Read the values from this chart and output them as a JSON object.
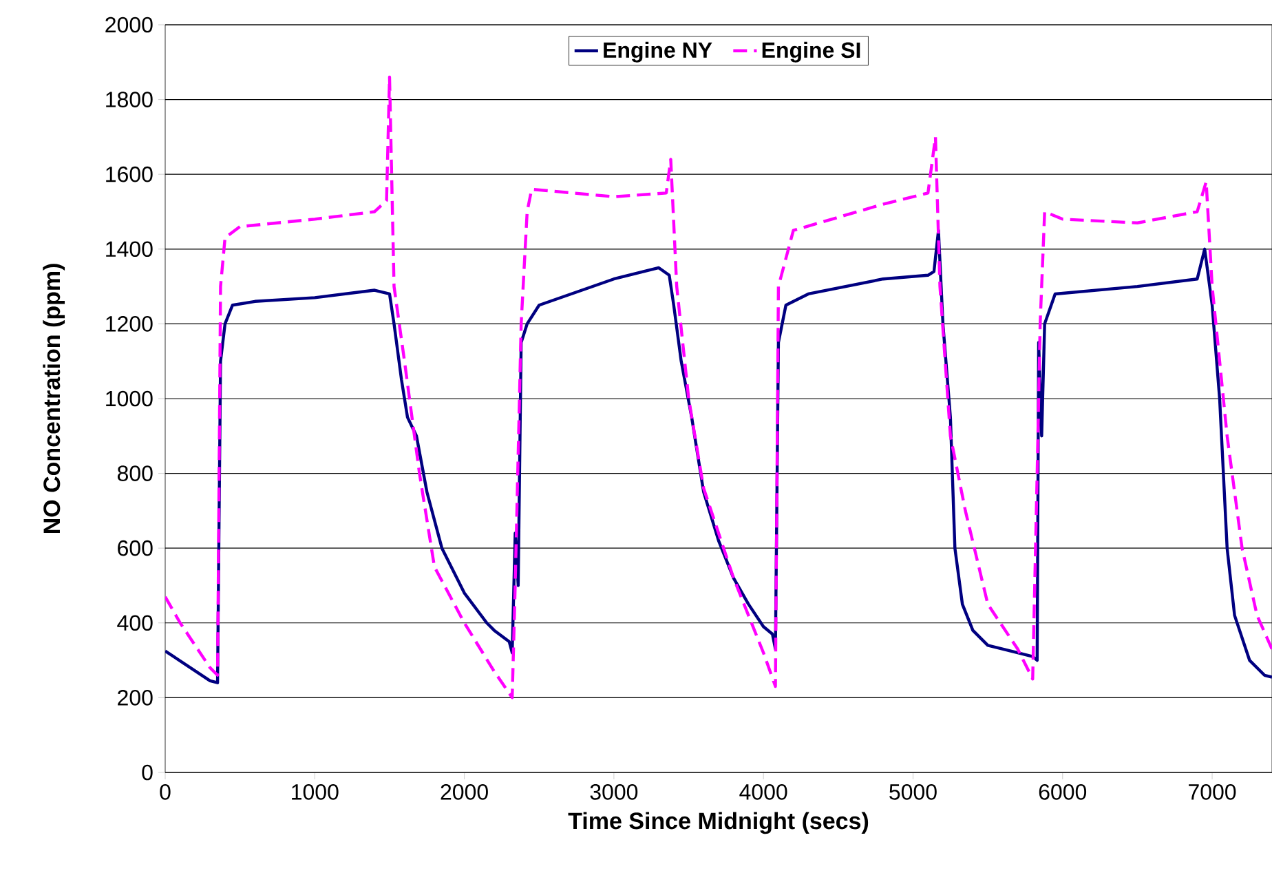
{
  "chart_data": {
    "type": "line",
    "xlabel": "Time Since Midnight (secs)",
    "ylabel": "NO Concentration (ppm)",
    "xlim": [
      0,
      7400
    ],
    "xticks": [
      0,
      1000,
      2000,
      3000,
      4000,
      5000,
      6000,
      7000
    ],
    "ylim": [
      0,
      2000
    ],
    "yticks": [
      0,
      200,
      400,
      600,
      800,
      1000,
      1200,
      1400,
      1600,
      1800,
      2000
    ],
    "grid": "y",
    "legend": "top",
    "marker": "none",
    "series": [
      {
        "name": "Engine NY",
        "color": "#000080",
        "line_style": "solid",
        "x": [
          0,
          300,
          350,
          370,
          400,
          450,
          600,
          1000,
          1400,
          1500,
          1530,
          1580,
          1620,
          1680,
          1750,
          1850,
          2000,
          2150,
          2200,
          2300,
          2320,
          2340,
          2360,
          2380,
          2420,
          2500,
          3000,
          3300,
          3370,
          3400,
          3450,
          3520,
          3600,
          3700,
          3800,
          3900,
          4000,
          4060,
          4080,
          4100,
          4150,
          4300,
          4800,
          5100,
          5140,
          5170,
          5200,
          5250,
          5280,
          5330,
          5400,
          5500,
          5700,
          5800,
          5830,
          5840,
          5860,
          5880,
          5950,
          6500,
          6900,
          6950,
          7000,
          7050,
          7100,
          7150,
          7250,
          7350,
          7400
        ],
        "values": [
          325,
          245,
          240,
          1100,
          1200,
          1250,
          1260,
          1270,
          1290,
          1280,
          1200,
          1050,
          950,
          900,
          750,
          600,
          480,
          400,
          380,
          350,
          320,
          640,
          500,
          1150,
          1200,
          1250,
          1320,
          1350,
          1330,
          1250,
          1100,
          950,
          750,
          620,
          520,
          450,
          390,
          370,
          330,
          1150,
          1250,
          1280,
          1320,
          1330,
          1340,
          1450,
          1200,
          950,
          600,
          450,
          380,
          340,
          320,
          310,
          300,
          1150,
          900,
          1200,
          1280,
          1300,
          1320,
          1400,
          1250,
          1000,
          600,
          420,
          300,
          260,
          255
        ]
      },
      {
        "name": "Engine SI",
        "color": "#ff00ff",
        "line_style": "dashed",
        "x": [
          0,
          100,
          300,
          350,
          370,
          400,
          500,
          1000,
          1400,
          1480,
          1500,
          1530,
          1600,
          1700,
          1800,
          2000,
          2200,
          2320,
          2340,
          2380,
          2420,
          2450,
          3000,
          3350,
          3380,
          3420,
          3500,
          3600,
          3800,
          4000,
          4080,
          4100,
          4200,
          4800,
          5100,
          5150,
          5180,
          5250,
          5350,
          5500,
          5700,
          5800,
          5830,
          5850,
          5880,
          6000,
          6500,
          6900,
          6960,
          7000,
          7100,
          7200,
          7300,
          7400
        ],
        "values": [
          470,
          400,
          280,
          260,
          1300,
          1430,
          1460,
          1480,
          1500,
          1530,
          1860,
          1300,
          1100,
          800,
          550,
          400,
          270,
          200,
          500,
          1200,
          1500,
          1560,
          1540,
          1550,
          1640,
          1300,
          1000,
          760,
          520,
          320,
          230,
          1300,
          1450,
          1520,
          1550,
          1700,
          1300,
          900,
          700,
          450,
          330,
          250,
          800,
          1200,
          1500,
          1480,
          1470,
          1500,
          1580,
          1300,
          900,
          600,
          420,
          330
        ]
      }
    ]
  }
}
